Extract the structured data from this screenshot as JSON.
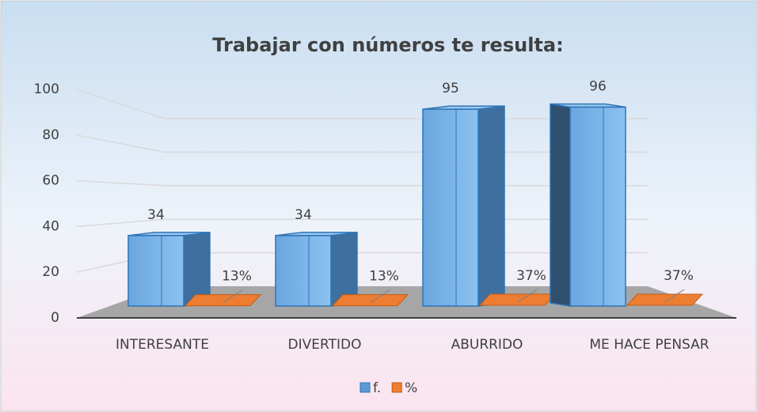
{
  "chart_data": {
    "type": "bar3d",
    "title": "Trabajar con números te resulta:",
    "categories": [
      "INTERESANTE",
      "DIVERTIDO",
      "ABURRIDO",
      "ME HACE PENSAR"
    ],
    "series": [
      {
        "name": "f.",
        "color": "#5b9bd5",
        "values": [
          34,
          34,
          95,
          96
        ]
      },
      {
        "name": "%",
        "color": "#ed7d31",
        "values": [
          0.13,
          0.13,
          0.37,
          0.37
        ],
        "value_labels": [
          "13%",
          "13%",
          "37%",
          "37%"
        ]
      }
    ],
    "ylim": [
      0,
      100
    ],
    "yticks": [
      0,
      20,
      40,
      60,
      80,
      100
    ],
    "grid": true,
    "legend": "bottom"
  }
}
